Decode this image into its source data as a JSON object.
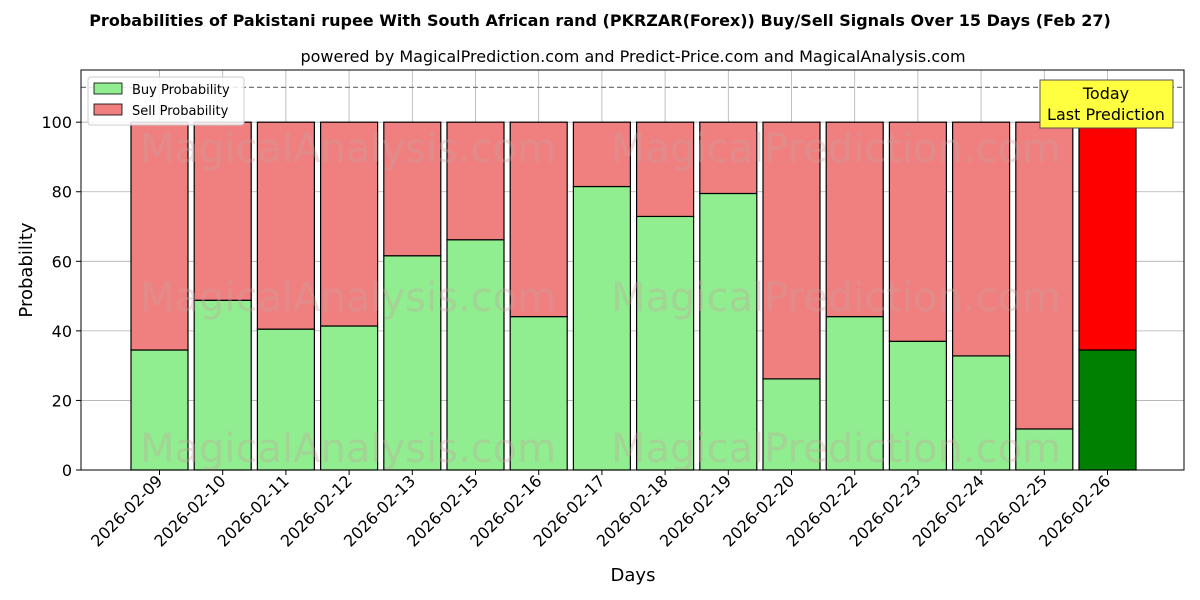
{
  "chart_data": {
    "type": "bar",
    "stacked": true,
    "title": "Probabilities of Pakistani rupee With South African rand (PKRZAR(Forex)) Buy/Sell Signals Over 15 Days (Feb 27)",
    "subtitle": "powered by MagicalPrediction.com and Predict-Price.com and MagicalAnalysis.com",
    "xlabel": "Days",
    "ylabel": "Probability",
    "ylim": [
      0,
      115
    ],
    "yticks": [
      0,
      20,
      40,
      60,
      80,
      100
    ],
    "grid": true,
    "legend_position": "top-left",
    "reference_line": {
      "y": 110,
      "style": "dashed"
    },
    "watermark": "MagicalAnalysis.com  MagicalPrediction.com",
    "categories": [
      "2026-02-09",
      "2026-02-10",
      "2026-02-11",
      "2026-02-12",
      "2026-02-13",
      "2026-02-15",
      "2026-02-16",
      "2026-02-17",
      "2026-02-18",
      "2026-02-19",
      "2026-02-20",
      "2026-02-22",
      "2026-02-23",
      "2026-02-24",
      "2026-02-25",
      "2026-02-26"
    ],
    "series": [
      {
        "name": "Buy Probability",
        "color": "#90ee90",
        "highlight_color": "#008000",
        "values": [
          34.5,
          48.8,
          40.5,
          41.4,
          61.6,
          66.2,
          44.1,
          81.5,
          72.9,
          79.5,
          26.2,
          44.1,
          37.0,
          32.8,
          11.8,
          34.5
        ]
      },
      {
        "name": "Sell Probability",
        "color": "#f08080",
        "highlight_color": "#ff0000",
        "values": [
          65.5,
          51.2,
          59.5,
          58.6,
          38.4,
          33.8,
          55.9,
          18.5,
          27.1,
          20.5,
          73.8,
          55.9,
          63.0,
          67.2,
          88.2,
          65.5
        ]
      }
    ],
    "highlight_index": 15,
    "annotation": {
      "line1": "Today",
      "line2": "Last Prediction",
      "background": "#ffff40"
    }
  }
}
